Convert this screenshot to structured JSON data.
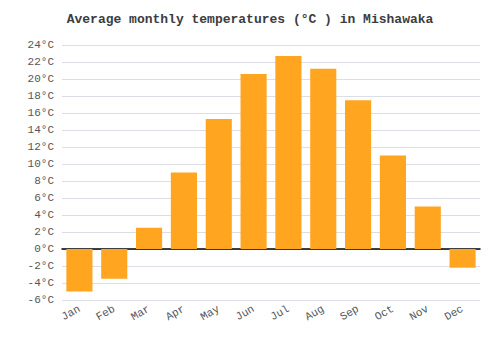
{
  "chart_data": {
    "type": "bar",
    "title": "Average monthly temperatures (°C ) in Mishawaka",
    "categories": [
      "Jan",
      "Feb",
      "Mar",
      "Apr",
      "May",
      "Jun",
      "Jul",
      "Aug",
      "Sep",
      "Oct",
      "Nov",
      "Dec"
    ],
    "values": [
      -5.0,
      -3.5,
      2.5,
      9.0,
      15.3,
      20.6,
      22.7,
      21.2,
      17.5,
      11.0,
      5.0,
      -2.2
    ],
    "color": "#FFA520",
    "ylim": [
      -6,
      24
    ],
    "yticks": [
      {
        "value": -6,
        "label": "-6°C"
      },
      {
        "value": -4,
        "label": "-4°C"
      },
      {
        "value": -2,
        "label": "-2°C"
      },
      {
        "value": 0,
        "label": "0°C"
      },
      {
        "value": 2,
        "label": "2°C"
      },
      {
        "value": 4,
        "label": "4°C"
      },
      {
        "value": 6,
        "label": "6°C"
      },
      {
        "value": 8,
        "label": "8°C"
      },
      {
        "value": 10,
        "label": "10°C"
      },
      {
        "value": 12,
        "label": "12°C"
      },
      {
        "value": 14,
        "label": "14°C"
      },
      {
        "value": 16,
        "label": "16°C"
      },
      {
        "value": 18,
        "label": "18°C"
      },
      {
        "value": 20,
        "label": "20°C"
      },
      {
        "value": 22,
        "label": "22°C"
      },
      {
        "value": 24,
        "label": "24°C"
      }
    ],
    "grid": true
  }
}
